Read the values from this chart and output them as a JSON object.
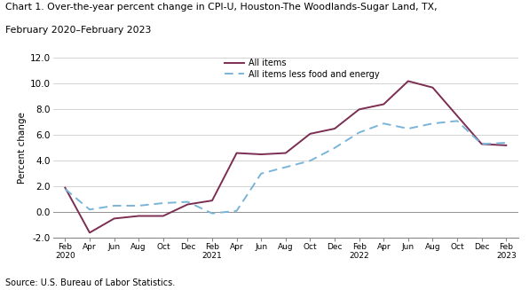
{
  "title_line1": "Chart 1. Over-the-year percent change in CPI-U, Houston-The Woodlands-Sugar Land, TX,",
  "title_line2": "February 2020–February 2023",
  "ylabel": "Percent change",
  "source": "Source: U.S. Bureau of Labor Statistics.",
  "ylim": [
    -2.0,
    12.0
  ],
  "yticks": [
    -2.0,
    0.0,
    2.0,
    4.0,
    6.0,
    8.0,
    10.0,
    12.0
  ],
  "labels": [
    "Feb\n2020",
    "Apr",
    "Jun",
    "Aug",
    "Oct",
    "Dec",
    "Feb\n2021",
    "Apr",
    "Jun",
    "Aug",
    "Oct",
    "Dec",
    "Feb\n2022",
    "Apr",
    "Jun",
    "Aug",
    "Oct",
    "Dec",
    "Feb\n2023"
  ],
  "all_items": [
    1.9,
    -1.6,
    -0.5,
    -0.3,
    -0.3,
    0.6,
    0.9,
    4.6,
    4.5,
    4.6,
    6.1,
    6.5,
    8.0,
    8.4,
    10.2,
    9.7,
    7.5,
    5.3,
    5.2
  ],
  "less_food_energy": [
    1.8,
    0.2,
    0.5,
    0.5,
    0.7,
    0.8,
    -0.1,
    0.1,
    3.0,
    3.5,
    4.0,
    5.0,
    6.2,
    6.9,
    6.5,
    6.9,
    7.1,
    5.3,
    5.4
  ],
  "all_items_color": "#7b2d52",
  "less_food_energy_color": "#7ab4d8",
  "legend_all": "All items",
  "legend_less": "All items less food and energy",
  "background_color": "#ffffff"
}
